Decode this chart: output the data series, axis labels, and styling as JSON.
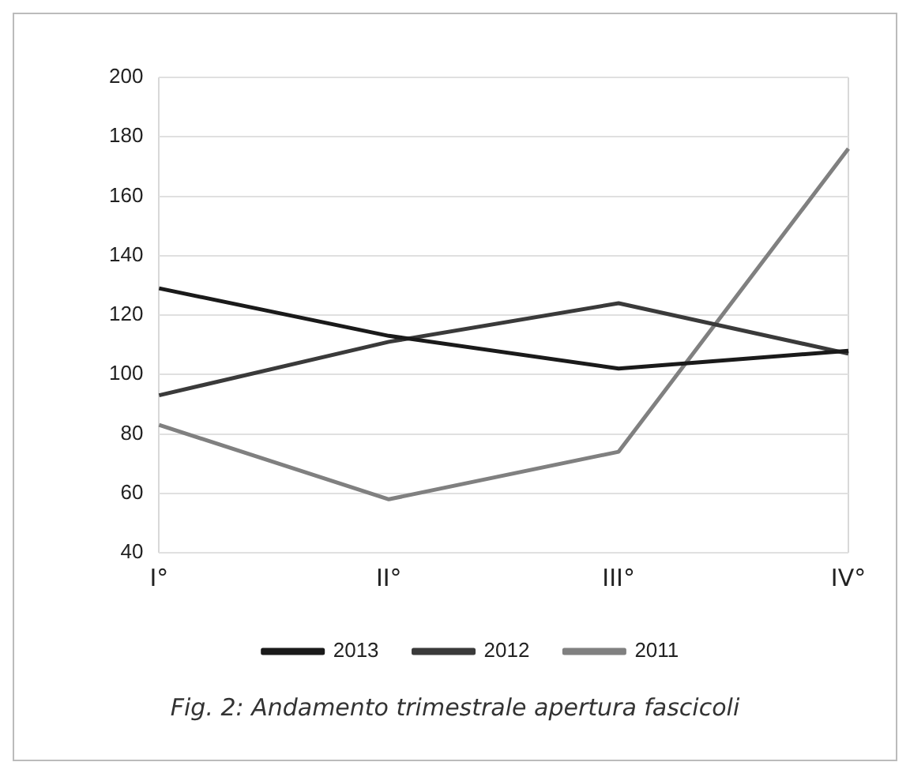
{
  "chart_data": {
    "type": "line",
    "categories": [
      "I°",
      "II°",
      "III°",
      "IV°"
    ],
    "series": [
      {
        "name": "2013",
        "color": "#1a1a1a",
        "values": [
          129,
          113,
          102,
          108
        ]
      },
      {
        "name": "2012",
        "color": "#3a3a3a",
        "values": [
          93,
          111,
          124,
          107
        ]
      },
      {
        "name": "2011",
        "color": "#808080",
        "values": [
          83,
          58,
          74,
          176
        ]
      }
    ],
    "ylim": [
      40,
      200
    ],
    "yticks": [
      40,
      60,
      80,
      100,
      120,
      140,
      160,
      180,
      200
    ],
    "grid": "y",
    "legend": "bottom",
    "marker": "none",
    "line_style": "solid",
    "annotations": [
      "Fig. 2: Andamento trimestrale apertura fascicoli"
    ]
  }
}
